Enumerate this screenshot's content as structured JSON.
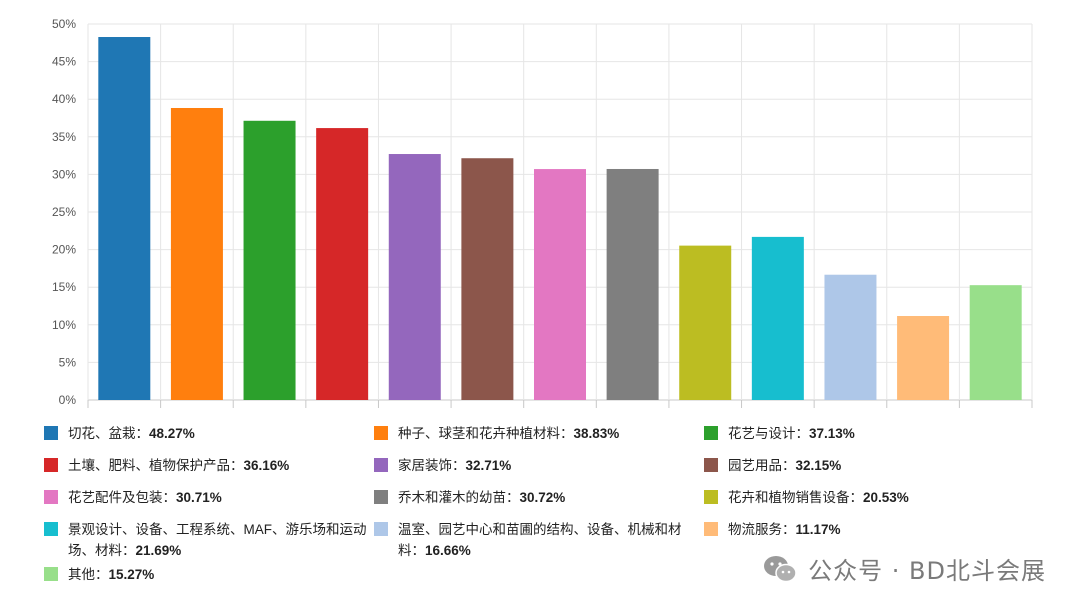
{
  "chart_data": {
    "type": "bar",
    "categories": [
      "切花、盆栽",
      "种子、球茎和花卉种植材料",
      "花艺与设计",
      "土壤、肥料、植物保护产品",
      "家居装饰",
      "园艺用品",
      "花艺配件及包装",
      "乔木和灌木的幼苗",
      "花卉和植物销售设备",
      "景观设计、设备、工程系统、MAF、游乐场和运动场、材料",
      "温室、园艺中心和苗圃的结构、设备、机械和材料",
      "物流服务",
      "其他"
    ],
    "values": [
      48.27,
      38.83,
      37.13,
      36.16,
      32.71,
      32.15,
      30.71,
      30.72,
      20.53,
      21.69,
      16.66,
      11.17,
      15.27
    ],
    "value_labels": [
      "48.27%",
      "38.83%",
      "37.13%",
      "36.16%",
      "32.71%",
      "32.15%",
      "30.71%",
      "30.72%",
      "20.53%",
      "21.69%",
      "16.66%",
      "11.17%",
      "15.27%"
    ],
    "colors": [
      "#1f77b4",
      "#ff7f0e",
      "#2ca02c",
      "#d62728",
      "#9467bd",
      "#8c564b",
      "#e377c2",
      "#7f7f7f",
      "#bcbd22",
      "#17becf",
      "#aec7e8",
      "#ffbb78",
      "#98df8a"
    ],
    "ylim": [
      0,
      50
    ],
    "yticks": [
      "0%",
      "5%",
      "10%",
      "15%",
      "20%",
      "25%",
      "30%",
      "35%",
      "40%",
      "45%",
      "50%"
    ],
    "grid": true,
    "legend_position": "bottom"
  },
  "watermark": {
    "text": "公众号 · BD北斗会展",
    "icon": "wechat-icon"
  }
}
